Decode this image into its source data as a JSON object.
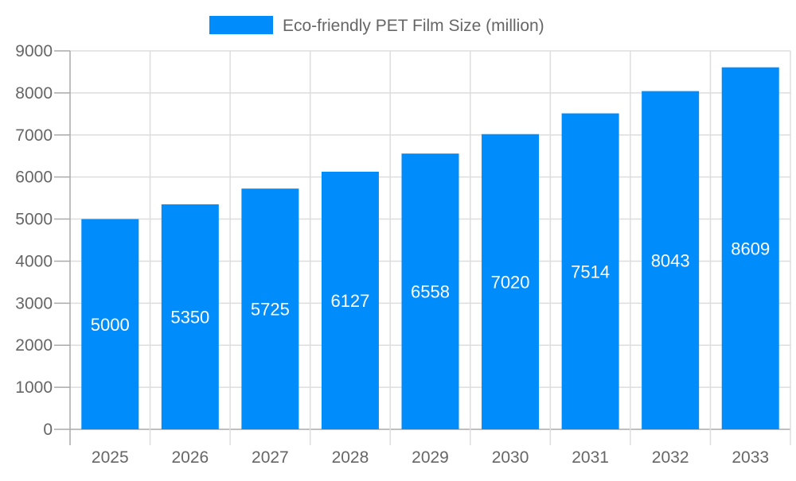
{
  "chart_data": {
    "type": "bar",
    "title": "",
    "xlabel": "",
    "ylabel": "",
    "categories": [
      "2025",
      "2026",
      "2027",
      "2028",
      "2029",
      "2030",
      "2031",
      "2032",
      "2033"
    ],
    "series": [
      {
        "name": "Eco-friendly PET Film Size (million)",
        "values": [
          5000,
          5350,
          5725,
          6127,
          6558,
          7020,
          7514,
          8043,
          8609
        ],
        "color": "#008cfa"
      }
    ],
    "ylim": [
      0,
      9000
    ],
    "yticks": [
      0,
      1000,
      2000,
      3000,
      4000,
      5000,
      6000,
      7000,
      8000,
      9000
    ],
    "grid": true,
    "legend_position": "top",
    "data_labels": true,
    "colors": {
      "bar": "#008cfa",
      "grid": "#dddddd",
      "axis": "#aaaaaa",
      "text": "#666666",
      "label": "#ffffff"
    }
  }
}
